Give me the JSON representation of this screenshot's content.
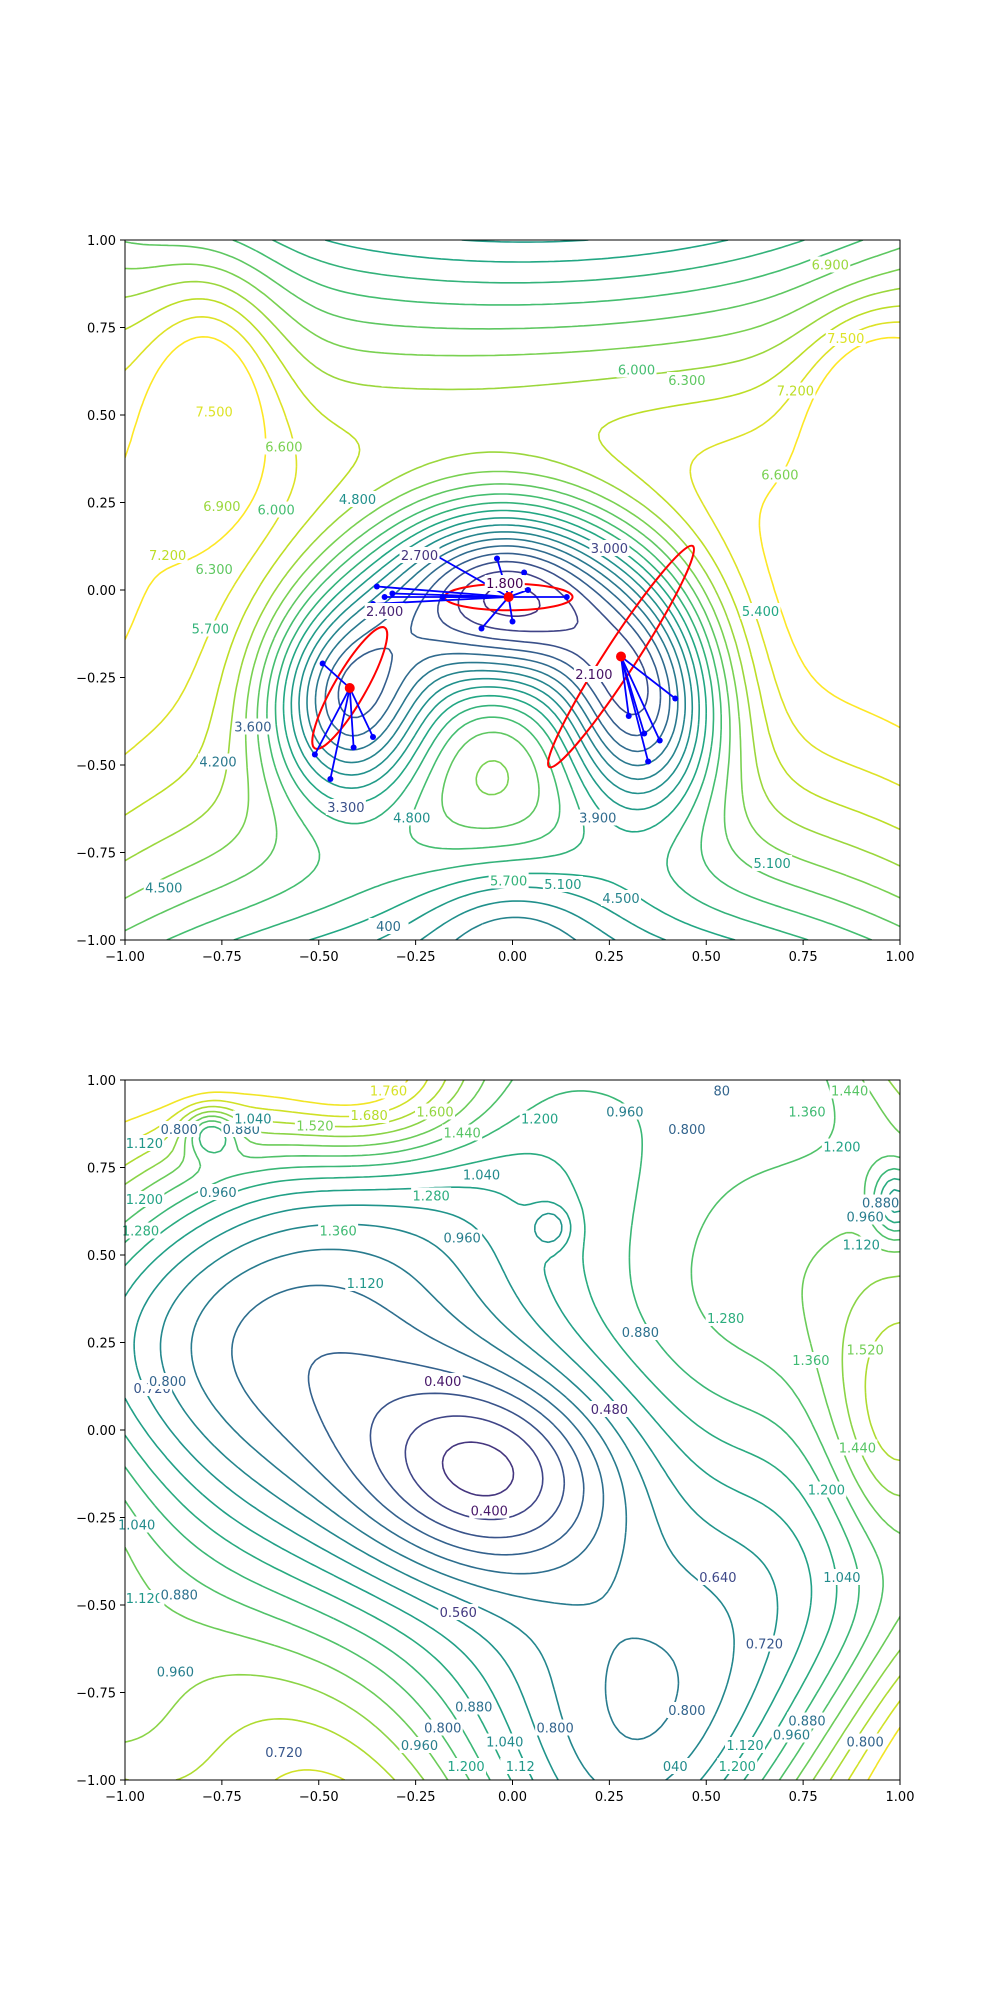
{
  "chart_data": [
    {
      "type": "contour",
      "title": "",
      "xlabel": "",
      "ylabel": "",
      "xlim": [
        -1.0,
        1.0
      ],
      "ylim": [
        -1.0,
        1.0
      ],
      "xticks": [
        "−1.00",
        "−0.75",
        "−0.50",
        "−0.25",
        "0.00",
        "0.25",
        "0.50",
        "0.75",
        "1.00"
      ],
      "yticks": [
        "−1.00",
        "−0.75",
        "−0.50",
        "−0.25",
        "0.00",
        "0.25",
        "0.50",
        "0.75",
        "1.00"
      ],
      "colormap": "viridis",
      "color_range": [
        1.8,
        7.8
      ],
      "contour_levels_step": 0.3,
      "wells": [
        {
          "x": -0.02,
          "y": -0.02,
          "depth": 1.8
        },
        {
          "x": -0.42,
          "y": -0.32,
          "depth": 2.3
        },
        {
          "x": 0.33,
          "y": -0.33,
          "depth": 2.0
        }
      ],
      "contour_labels": [
        {
          "text": "6.900",
          "x": 0.82,
          "y": 0.93,
          "level": 6.9
        },
        {
          "text": "7.500",
          "x": 0.86,
          "y": 0.72,
          "level": 7.5
        },
        {
          "text": "7.200",
          "x": 0.73,
          "y": 0.57,
          "level": 7.2
        },
        {
          "text": "6.600",
          "x": 0.69,
          "y": 0.33,
          "level": 6.6
        },
        {
          "text": "6.300",
          "x": 0.45,
          "y": 0.6,
          "level": 6.3
        },
        {
          "text": "6.000",
          "x": 0.32,
          "y": 0.63,
          "level": 6.0
        },
        {
          "text": "5.400",
          "x": 0.64,
          "y": -0.06,
          "level": 5.4
        },
        {
          "text": "5.100",
          "x": 0.67,
          "y": -0.78,
          "level": 5.1
        },
        {
          "text": "7.500",
          "x": -0.77,
          "y": 0.51,
          "level": 7.5
        },
        {
          "text": "6.600",
          "x": -0.59,
          "y": 0.41,
          "level": 6.6
        },
        {
          "text": "6.900",
          "x": -0.75,
          "y": 0.24,
          "level": 6.9
        },
        {
          "text": "6.000",
          "x": -0.61,
          "y": 0.23,
          "level": 6.0
        },
        {
          "text": "7.200",
          "x": -0.89,
          "y": 0.1,
          "level": 7.2
        },
        {
          "text": "6.300",
          "x": -0.77,
          "y": 0.06,
          "level": 6.3
        },
        {
          "text": "5.700",
          "x": -0.78,
          "y": -0.11,
          "level": 5.7
        },
        {
          "text": "4.800",
          "x": -0.4,
          "y": 0.26,
          "level": 4.8
        },
        {
          "text": "2.700",
          "x": -0.24,
          "y": 0.1,
          "level": 2.7
        },
        {
          "text": "3.000",
          "x": 0.25,
          "y": 0.12,
          "level": 3.0
        },
        {
          "text": "1.800",
          "x": -0.02,
          "y": 0.02,
          "level": 1.8
        },
        {
          "text": "2.400",
          "x": -0.33,
          "y": -0.06,
          "level": 2.4
        },
        {
          "text": "2.100",
          "x": 0.21,
          "y": -0.24,
          "level": 2.1
        },
        {
          "text": "3.600",
          "x": -0.67,
          "y": -0.39,
          "level": 3.6
        },
        {
          "text": "4.200",
          "x": -0.76,
          "y": -0.49,
          "level": 4.2
        },
        {
          "text": "3.300",
          "x": -0.43,
          "y": -0.62,
          "level": 3.3
        },
        {
          "text": "4.800",
          "x": -0.26,
          "y": -0.65,
          "level": 4.8
        },
        {
          "text": "3.900",
          "x": 0.22,
          "y": -0.65,
          "level": 3.9
        },
        {
          "text": "5.700",
          "x": -0.01,
          "y": -0.83,
          "level": 5.7
        },
        {
          "text": "5.100",
          "x": 0.13,
          "y": -0.84,
          "level": 5.1
        },
        {
          "text": "4.500",
          "x": 0.28,
          "y": -0.88,
          "level": 4.5
        },
        {
          "text": "4.500",
          "x": -0.9,
          "y": -0.85,
          "level": 4.5
        },
        {
          "text": "400",
          "x": -0.32,
          "y": -0.96,
          "level": 4.0
        }
      ],
      "annotations": {
        "centers": [
          {
            "x": -0.01,
            "y": -0.02
          },
          {
            "x": -0.42,
            "y": -0.28
          },
          {
            "x": 0.28,
            "y": -0.19
          }
        ],
        "ellipses": [
          {
            "cx": -0.01,
            "cy": -0.02,
            "rx": 0.165,
            "ry": 0.038,
            "angle_deg": 0
          },
          {
            "cx": -0.42,
            "cy": -0.28,
            "rx": 0.18,
            "ry": 0.045,
            "angle_deg": -60
          },
          {
            "cx": 0.28,
            "cy": -0.19,
            "rx": 0.34,
            "ry": 0.045,
            "angle_deg": -57
          }
        ],
        "samples": [
          {
            "center": 0,
            "x": 0.14,
            "y": -0.02
          },
          {
            "center": 0,
            "x": -0.36,
            "y": -0.04
          },
          {
            "center": 0,
            "x": -0.33,
            "y": -0.02
          },
          {
            "center": 0,
            "x": -0.31,
            "y": -0.01
          },
          {
            "center": 0,
            "x": -0.35,
            "y": 0.01
          },
          {
            "center": 0,
            "x": -0.2,
            "y": 0.1
          },
          {
            "center": 0,
            "x": -0.04,
            "y": 0.09
          },
          {
            "center": 0,
            "x": 0.03,
            "y": 0.05
          },
          {
            "center": 0,
            "x": 0.04,
            "y": 0.0
          },
          {
            "center": 0,
            "x": -0.08,
            "y": -0.11
          },
          {
            "center": 0,
            "x": 0.0,
            "y": -0.09
          },
          {
            "center": 0,
            "x": -0.18,
            "y": -0.02
          },
          {
            "center": 1,
            "x": -0.49,
            "y": -0.21
          },
          {
            "center": 1,
            "x": -0.51,
            "y": -0.47
          },
          {
            "center": 1,
            "x": -0.47,
            "y": -0.54
          },
          {
            "center": 1,
            "x": -0.41,
            "y": -0.45
          },
          {
            "center": 1,
            "x": -0.36,
            "y": -0.42
          },
          {
            "center": 2,
            "x": 0.42,
            "y": -0.31
          },
          {
            "center": 2,
            "x": 0.38,
            "y": -0.43
          },
          {
            "center": 2,
            "x": 0.35,
            "y": -0.49
          },
          {
            "center": 2,
            "x": 0.3,
            "y": -0.36
          },
          {
            "center": 2,
            "x": 0.34,
            "y": -0.41
          }
        ]
      }
    },
    {
      "type": "contour",
      "title": "",
      "xlabel": "",
      "ylabel": "",
      "xlim": [
        -1.0,
        1.0
      ],
      "ylim": [
        -1.0,
        1.0
      ],
      "xticks": [
        "−1.00",
        "−0.75",
        "−0.50",
        "−0.25",
        "0.00",
        "0.25",
        "0.50",
        "0.75",
        "1.00"
      ],
      "yticks": [
        "−1.00",
        "−0.75",
        "−0.50",
        "−0.25",
        "0.00",
        "0.25",
        "0.50",
        "0.75",
        "1.00"
      ],
      "colormap": "viridis",
      "color_range": [
        0.3,
        1.85
      ],
      "contour_levels_step": 0.08,
      "contour_labels": [
        {
          "text": "0.800",
          "x": -0.86,
          "y": 0.86,
          "level": 0.8
        },
        {
          "text": "0.880",
          "x": -0.7,
          "y": 0.86,
          "level": 0.88
        },
        {
          "text": "1.040",
          "x": -0.67,
          "y": 0.89,
          "level": 1.04
        },
        {
          "text": "1.120",
          "x": -0.95,
          "y": 0.82,
          "level": 1.12
        },
        {
          "text": "0.960",
          "x": -0.76,
          "y": 0.68,
          "level": 0.96
        },
        {
          "text": "1.200",
          "x": -0.95,
          "y": 0.66,
          "level": 1.2
        },
        {
          "text": "1.280",
          "x": -0.96,
          "y": 0.57,
          "level": 1.28
        },
        {
          "text": "1.520",
          "x": -0.51,
          "y": 0.87,
          "level": 1.52
        },
        {
          "text": "1.680",
          "x": -0.37,
          "y": 0.9,
          "level": 1.68
        },
        {
          "text": "1.760",
          "x": -0.32,
          "y": 0.97,
          "level": 1.76
        },
        {
          "text": "1.600",
          "x": -0.2,
          "y": 0.91,
          "level": 1.6
        },
        {
          "text": "1.440",
          "x": -0.13,
          "y": 0.85,
          "level": 1.44
        },
        {
          "text": "1.200",
          "x": 0.07,
          "y": 0.89,
          "level": 1.2
        },
        {
          "text": "1.280",
          "x": -0.21,
          "y": 0.67,
          "level": 1.28
        },
        {
          "text": "1.040",
          "x": -0.08,
          "y": 0.73,
          "level": 1.04
        },
        {
          "text": "1.360",
          "x": -0.45,
          "y": 0.57,
          "level": 1.36
        },
        {
          "text": "0.960",
          "x": -0.13,
          "y": 0.55,
          "level": 0.96
        },
        {
          "text": "1.120",
          "x": -0.38,
          "y": 0.42,
          "level": 1.12
        },
        {
          "text": "0.960",
          "x": 0.29,
          "y": 0.91,
          "level": 0.96
        },
        {
          "text": "0.800",
          "x": 0.45,
          "y": 0.86,
          "level": 0.8
        },
        {
          "text": "80",
          "x": 0.54,
          "y": 0.97,
          "level": 0.8
        },
        {
          "text": "1.360",
          "x": 0.76,
          "y": 0.91,
          "level": 1.36
        },
        {
          "text": "1.440",
          "x": 0.87,
          "y": 0.97,
          "level": 1.44
        },
        {
          "text": "1.200",
          "x": 0.85,
          "y": 0.81,
          "level": 1.2
        },
        {
          "text": "0.880",
          "x": 0.95,
          "y": 0.65,
          "level": 0.88
        },
        {
          "text": "0.960",
          "x": 0.91,
          "y": 0.61,
          "level": 0.96
        },
        {
          "text": "1.120",
          "x": 0.9,
          "y": 0.53,
          "level": 1.12
        },
        {
          "text": "1.280",
          "x": 0.55,
          "y": 0.32,
          "level": 1.28
        },
        {
          "text": "1.360",
          "x": 0.77,
          "y": 0.2,
          "level": 1.36
        },
        {
          "text": "1.520",
          "x": 0.91,
          "y": 0.23,
          "level": 1.52
        },
        {
          "text": "1.440",
          "x": 0.89,
          "y": -0.05,
          "level": 1.44
        },
        {
          "text": "1.200",
          "x": 0.81,
          "y": -0.17,
          "level": 1.2
        },
        {
          "text": "1.040",
          "x": 0.85,
          "y": -0.42,
          "level": 1.04
        },
        {
          "text": "0.720",
          "x": 0.65,
          "y": -0.61,
          "level": 0.72
        },
        {
          "text": "0.880",
          "x": 0.76,
          "y": -0.83,
          "level": 0.88
        },
        {
          "text": "0.960",
          "x": 0.72,
          "y": -0.87,
          "level": 0.96
        },
        {
          "text": "0.800",
          "x": 0.91,
          "y": -0.89,
          "level": 0.8
        },
        {
          "text": "0.880",
          "x": 0.33,
          "y": 0.28,
          "level": 0.88
        },
        {
          "text": "0.480",
          "x": 0.25,
          "y": 0.06,
          "level": 0.48
        },
        {
          "text": "0.400",
          "x": -0.18,
          "y": 0.14,
          "level": 0.4
        },
        {
          "text": "0.400",
          "x": -0.06,
          "y": -0.23,
          "level": 0.4
        },
        {
          "text": "0.640",
          "x": 0.53,
          "y": -0.42,
          "level": 0.64
        },
        {
          "text": "0.560",
          "x": -0.14,
          "y": -0.52,
          "level": 0.56
        },
        {
          "text": "0.720",
          "x": -0.93,
          "y": 0.12,
          "level": 0.72
        },
        {
          "text": "0.800",
          "x": -0.89,
          "y": 0.14,
          "level": 0.8
        },
        {
          "text": "1.040",
          "x": -0.97,
          "y": -0.27,
          "level": 1.04
        },
        {
          "text": "1.120",
          "x": -0.95,
          "y": -0.48,
          "level": 1.12
        },
        {
          "text": "0.880",
          "x": -0.86,
          "y": -0.47,
          "level": 0.88
        },
        {
          "text": "0.960",
          "x": -0.87,
          "y": -0.69,
          "level": 0.96
        },
        {
          "text": "0.880",
          "x": -0.1,
          "y": -0.79,
          "level": 0.88
        },
        {
          "text": "0.800",
          "x": -0.18,
          "y": -0.85,
          "level": 0.8
        },
        {
          "text": "0.720",
          "x": -0.59,
          "y": -0.92,
          "level": 0.72
        },
        {
          "text": "0.960",
          "x": -0.24,
          "y": -0.9,
          "level": 0.96
        },
        {
          "text": "1.040",
          "x": -0.02,
          "y": -0.89,
          "level": 1.04
        },
        {
          "text": "1.200",
          "x": -0.12,
          "y": -0.96,
          "level": 1.2
        },
        {
          "text": "1.12",
          "x": 0.02,
          "y": -0.96,
          "level": 1.12
        },
        {
          "text": "0.800",
          "x": 0.11,
          "y": -0.85,
          "level": 0.8
        },
        {
          "text": "0.800",
          "x": 0.45,
          "y": -0.8,
          "level": 0.8
        },
        {
          "text": "040",
          "x": 0.42,
          "y": -0.96,
          "level": 1.04
        },
        {
          "text": "1.120",
          "x": 0.6,
          "y": -0.9,
          "level": 1.12
        },
        {
          "text": "1.200",
          "x": 0.58,
          "y": -0.96,
          "level": 1.2
        }
      ]
    }
  ]
}
